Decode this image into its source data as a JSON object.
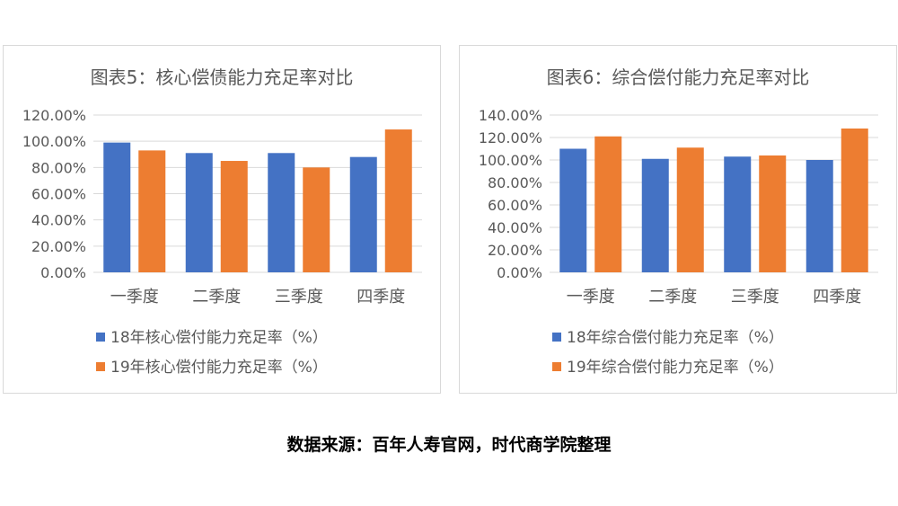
{
  "charts": [
    {
      "type": "bar",
      "title": "图表5：核心偿债能力充足率对比",
      "categories": [
        "一季度",
        "二季度",
        "三季度",
        "四季度"
      ],
      "ylim": [
        0,
        120
      ],
      "yticks": [
        "0.00%",
        "20.00%",
        "40.00%",
        "60.00%",
        "80.00%",
        "100.00%",
        "120.00%"
      ],
      "ytick_values": [
        0,
        20,
        40,
        60,
        80,
        100,
        120
      ],
      "series": [
        {
          "name": "18年核心偿付能力充足率（%）",
          "color": "#4472C4",
          "values": [
            99,
            91,
            91,
            88
          ]
        },
        {
          "name": "19年核心偿付能力充足率（%）",
          "color": "#ED7D31",
          "values": [
            93,
            85,
            80,
            109
          ]
        }
      ],
      "grid": true,
      "legend": "bottom"
    },
    {
      "type": "bar",
      "title": "图表6：综合偿付能力充足率对比",
      "categories": [
        "一季度",
        "二季度",
        "三季度",
        "四季度"
      ],
      "ylim": [
        0,
        140
      ],
      "yticks": [
        "0.00%",
        "20.00%",
        "40.00%",
        "60.00%",
        "80.00%",
        "100.00%",
        "120.00%",
        "140.00%"
      ],
      "ytick_values": [
        0,
        20,
        40,
        60,
        80,
        100,
        120,
        140
      ],
      "series": [
        {
          "name": "18年综合偿付能力充足率（%）",
          "color": "#4472C4",
          "values": [
            110,
            101,
            103,
            100
          ]
        },
        {
          "name": "19年综合偿付能力充足率（%）",
          "color": "#ED7D31",
          "values": [
            121,
            111,
            104,
            128
          ]
        }
      ],
      "grid": true,
      "legend": "bottom"
    }
  ],
  "source_note": "数据来源：百年人寿官网，时代商学院整理"
}
